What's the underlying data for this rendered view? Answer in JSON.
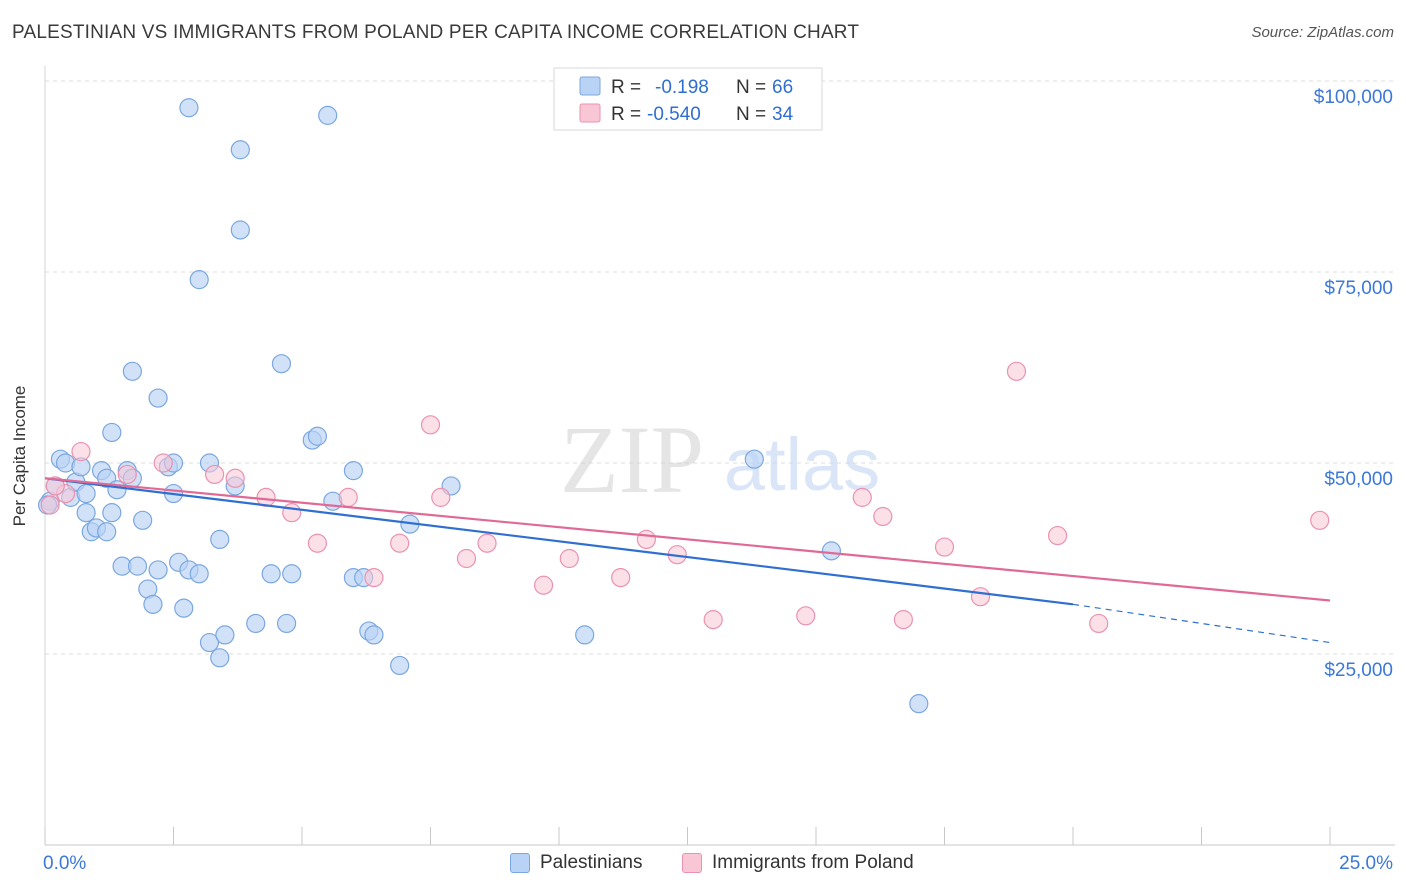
{
  "header": {
    "title": "PALESTINIAN VS IMMIGRANTS FROM POLAND PER CAPITA INCOME CORRELATION CHART",
    "source": "Source: ZipAtlas.com"
  },
  "watermark": {
    "zip": "ZIP",
    "atlas": "atlas"
  },
  "legend_top": [
    {
      "r_label": "R =",
      "r_value": "-0.198",
      "n_label": "N =",
      "n_value": "66"
    },
    {
      "r_label": "R =",
      "r_value": "-0.540",
      "n_label": "N =",
      "n_value": "34"
    }
  ],
  "colors": {
    "blue_fill": "#b8d3f5",
    "blue_stroke": "#7ba7e0",
    "blue_line": "#2f6fd0",
    "pink_fill": "#f9c6d6",
    "pink_stroke": "#ea92b0",
    "pink_line": "#e06a95",
    "axis_text": "#3b78d8",
    "grid": "#dddddd"
  },
  "chart_data": {
    "type": "scatter",
    "title": "PALESTINIAN VS IMMIGRANTS FROM POLAND PER CAPITA INCOME CORRELATION CHART",
    "xlabel": "",
    "ylabel": "Per Capita Income",
    "xlim": [
      0,
      25
    ],
    "ylim": [
      0,
      105000
    ],
    "x_tick_labels": [
      "0.0%",
      "25.0%"
    ],
    "y_ticks": [
      25000,
      50000,
      75000,
      100000
    ],
    "y_tick_labels": [
      "$25,000",
      "$50,000",
      "$75,000",
      "$100,000"
    ],
    "grid": true,
    "legend_position": "top-center and bottom",
    "series": [
      {
        "name": "Palestinians",
        "color": "#7ba7e0",
        "r": -0.198,
        "n": 66,
        "trend": {
          "x": [
            0,
            20
          ],
          "y": [
            48000,
            31500
          ],
          "dashed_to": [
            25,
            26500
          ]
        },
        "points": [
          [
            0.1,
            45000
          ],
          [
            0.2,
            47000
          ],
          [
            0.3,
            50500
          ],
          [
            0.4,
            50000
          ],
          [
            0.5,
            45500
          ],
          [
            0.6,
            47500
          ],
          [
            0.7,
            49500
          ],
          [
            0.8,
            43500
          ],
          [
            0.8,
            46000
          ],
          [
            0.9,
            41000
          ],
          [
            1.0,
            41500
          ],
          [
            1.1,
            49000
          ],
          [
            1.2,
            41000
          ],
          [
            1.2,
            48000
          ],
          [
            1.3,
            54000
          ],
          [
            1.3,
            43500
          ],
          [
            1.4,
            46500
          ],
          [
            1.5,
            36500
          ],
          [
            1.6,
            49000
          ],
          [
            1.7,
            48000
          ],
          [
            1.7,
            62000
          ],
          [
            1.8,
            36500
          ],
          [
            1.9,
            42500
          ],
          [
            2.0,
            33500
          ],
          [
            2.1,
            31500
          ],
          [
            2.2,
            36000
          ],
          [
            2.2,
            58500
          ],
          [
            2.4,
            49500
          ],
          [
            2.5,
            46000
          ],
          [
            2.5,
            50000
          ],
          [
            2.6,
            37000
          ],
          [
            2.7,
            31000
          ],
          [
            2.8,
            96500
          ],
          [
            2.8,
            36000
          ],
          [
            3.0,
            35500
          ],
          [
            3.0,
            74000
          ],
          [
            3.2,
            50000
          ],
          [
            3.2,
            26500
          ],
          [
            3.4,
            24500
          ],
          [
            3.4,
            40000
          ],
          [
            3.5,
            27500
          ],
          [
            3.7,
            47000
          ],
          [
            3.8,
            80500
          ],
          [
            3.8,
            91000
          ],
          [
            4.1,
            29000
          ],
          [
            4.4,
            35500
          ],
          [
            4.6,
            63000
          ],
          [
            4.7,
            29000
          ],
          [
            4.8,
            35500
          ],
          [
            5.2,
            53000
          ],
          [
            5.3,
            53500
          ],
          [
            5.5,
            95500
          ],
          [
            5.6,
            45000
          ],
          [
            6.0,
            49000
          ],
          [
            6.0,
            35000
          ],
          [
            6.2,
            35000
          ],
          [
            6.3,
            28000
          ],
          [
            6.4,
            27500
          ],
          [
            6.9,
            23500
          ],
          [
            7.1,
            42000
          ],
          [
            7.9,
            47000
          ],
          [
            10.5,
            27500
          ],
          [
            13.8,
            50500
          ],
          [
            15.3,
            38500
          ],
          [
            17.0,
            18500
          ],
          [
            0.05,
            44500
          ]
        ]
      },
      {
        "name": "Immigrants from Poland",
        "color": "#ea92b0",
        "r": -0.54,
        "n": 34,
        "trend": {
          "x": [
            0,
            25
          ],
          "y": [
            48000,
            32000
          ]
        },
        "points": [
          [
            0.1,
            44500
          ],
          [
            0.4,
            46000
          ],
          [
            0.7,
            51500
          ],
          [
            1.6,
            48500
          ],
          [
            2.3,
            50000
          ],
          [
            3.3,
            48500
          ],
          [
            3.7,
            48000
          ],
          [
            4.3,
            45500
          ],
          [
            4.8,
            43500
          ],
          [
            5.3,
            39500
          ],
          [
            5.9,
            45500
          ],
          [
            6.4,
            35000
          ],
          [
            6.9,
            39500
          ],
          [
            7.5,
            55000
          ],
          [
            7.7,
            45500
          ],
          [
            8.2,
            37500
          ],
          [
            8.6,
            39500
          ],
          [
            9.7,
            34000
          ],
          [
            10.2,
            37500
          ],
          [
            11.2,
            35000
          ],
          [
            11.7,
            40000
          ],
          [
            12.3,
            38000
          ],
          [
            13.0,
            29500
          ],
          [
            14.8,
            30000
          ],
          [
            15.9,
            45500
          ],
          [
            16.3,
            43000
          ],
          [
            16.7,
            29500
          ],
          [
            17.5,
            39000
          ],
          [
            18.2,
            32500
          ],
          [
            18.9,
            62000
          ],
          [
            19.7,
            40500
          ],
          [
            20.5,
            29000
          ],
          [
            24.8,
            42500
          ],
          [
            0.2,
            47000
          ]
        ]
      }
    ]
  },
  "legend_bottom": [
    {
      "label": "Palestinians"
    },
    {
      "label": "Immigrants from Poland"
    }
  ]
}
